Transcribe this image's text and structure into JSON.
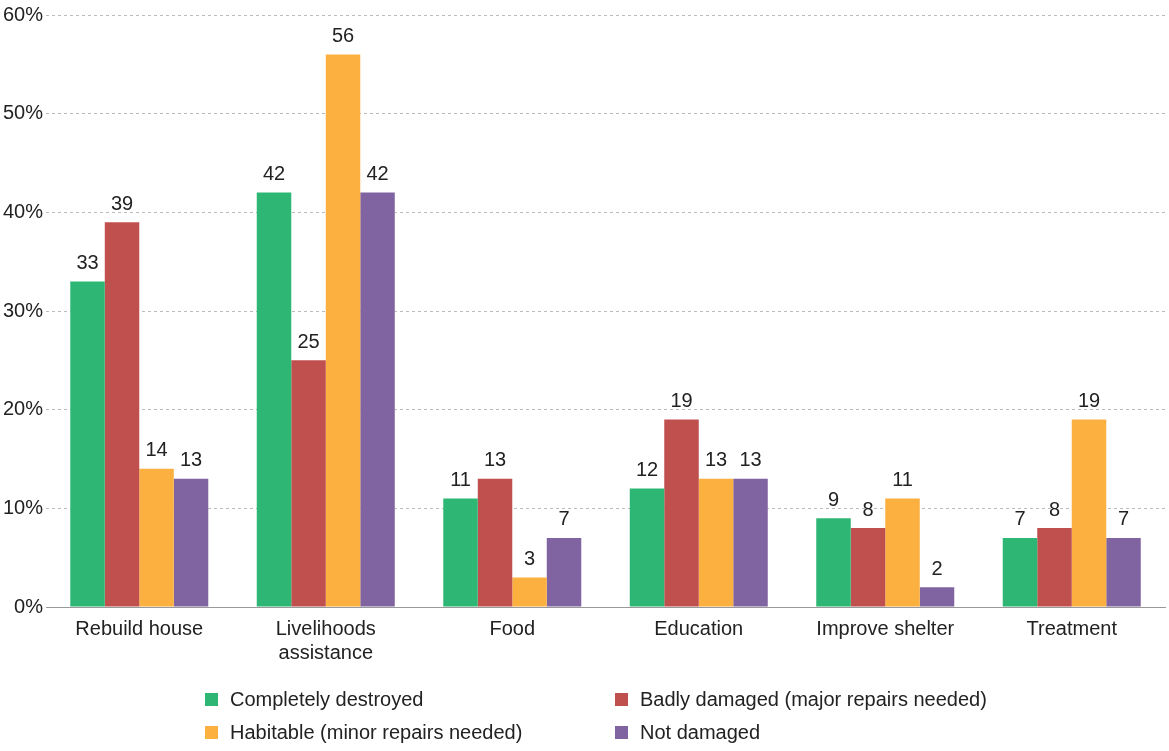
{
  "chart_data": {
    "type": "bar",
    "categories": [
      "Rebuild house",
      "Livelihoods assistance",
      "Food",
      "Education",
      "Improve shelter",
      "Treatment"
    ],
    "series": [
      {
        "name": "Completely destroyed",
        "color": "#2db674",
        "values": [
          33,
          42,
          11,
          12,
          9,
          7
        ]
      },
      {
        "name": "Badly damaged (major repairs needed)",
        "color": "#c0504d",
        "values": [
          39,
          25,
          13,
          19,
          8,
          8
        ]
      },
      {
        "name": "Habitable (minor repairs needed)",
        "color": "#fbb040",
        "values": [
          14,
          56,
          3,
          13,
          11,
          19
        ]
      },
      {
        "name": "Not damaged",
        "color": "#8064a2",
        "values": [
          13,
          42,
          7,
          13,
          2,
          7
        ]
      }
    ],
    "ylim": [
      0,
      60
    ],
    "yticks": [
      {
        "value": 0,
        "label": "0%"
      },
      {
        "value": 10,
        "label": "10%"
      },
      {
        "value": 20,
        "label": "20%"
      },
      {
        "value": 30,
        "label": "30%"
      },
      {
        "value": 40,
        "label": "40%"
      },
      {
        "value": 50,
        "label": "50%"
      },
      {
        "value": 60,
        "label": "60%"
      }
    ],
    "grid": "y",
    "legend": "bottom",
    "data_labels": true
  }
}
